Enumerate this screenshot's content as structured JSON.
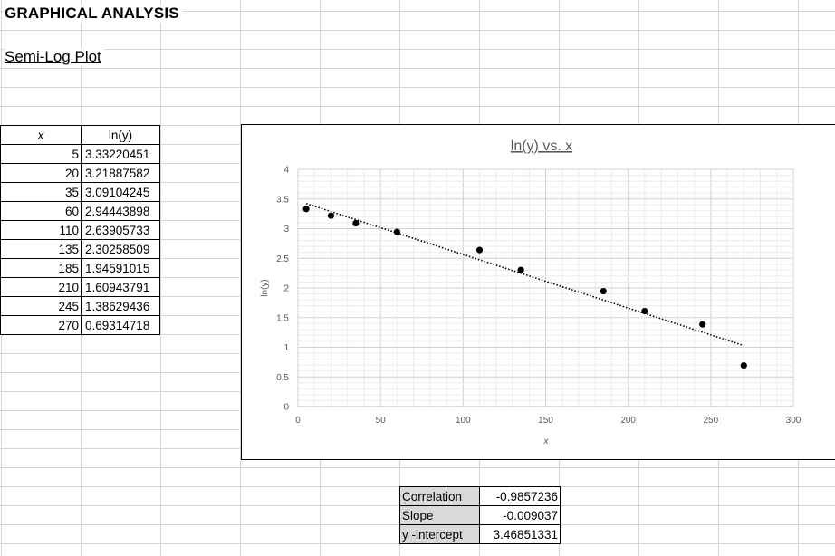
{
  "sheet": {
    "title": "GRAPHICAL ANALYSIS",
    "subtitle": "Semi-Log Plot"
  },
  "table": {
    "header_x": "x",
    "header_y": "ln(y)",
    "rows": [
      {
        "x": "5",
        "y": "3.33220451"
      },
      {
        "x": "20",
        "y": "3.21887582"
      },
      {
        "x": "35",
        "y": "3.09104245"
      },
      {
        "x": "60",
        "y": "2.94443898"
      },
      {
        "x": "110",
        "y": "2.63905733"
      },
      {
        "x": "135",
        "y": "2.30258509"
      },
      {
        "x": "185",
        "y": "1.94591015"
      },
      {
        "x": "210",
        "y": "1.60943791"
      },
      {
        "x": "245",
        "y": "1.38629436"
      },
      {
        "x": "270",
        "y": "0.69314718"
      }
    ]
  },
  "stats": {
    "correlation_label": "Correlation",
    "correlation_value": "-0.9857236",
    "slope_label": "Slope",
    "slope_value": "-0.009037",
    "intercept_label": "y -intercept",
    "intercept_value": "3.46851331"
  },
  "chart_data": {
    "type": "scatter",
    "title": "ln(y) vs. x",
    "xlabel": "x",
    "ylabel": "ln(y)",
    "xlim": [
      0,
      300
    ],
    "ylim": [
      0,
      4
    ],
    "x_ticks": [
      "0",
      "50",
      "100",
      "150",
      "200",
      "250",
      "300"
    ],
    "y_ticks": [
      "0",
      "0.5",
      "1",
      "1.5",
      "2",
      "2.5",
      "3",
      "3.5",
      "4"
    ],
    "grid": true,
    "x": [
      5,
      20,
      35,
      60,
      110,
      135,
      185,
      210,
      245,
      270
    ],
    "y": [
      3.33220451,
      3.21887582,
      3.09104245,
      2.94443898,
      2.63905733,
      2.30258509,
      1.94591015,
      1.60943791,
      1.38629436,
      0.69314718
    ],
    "trendline": {
      "type": "linear",
      "slope": -0.009037,
      "intercept": 3.46851331,
      "x_range": [
        5,
        270
      ]
    },
    "marker_color": "#000000"
  }
}
